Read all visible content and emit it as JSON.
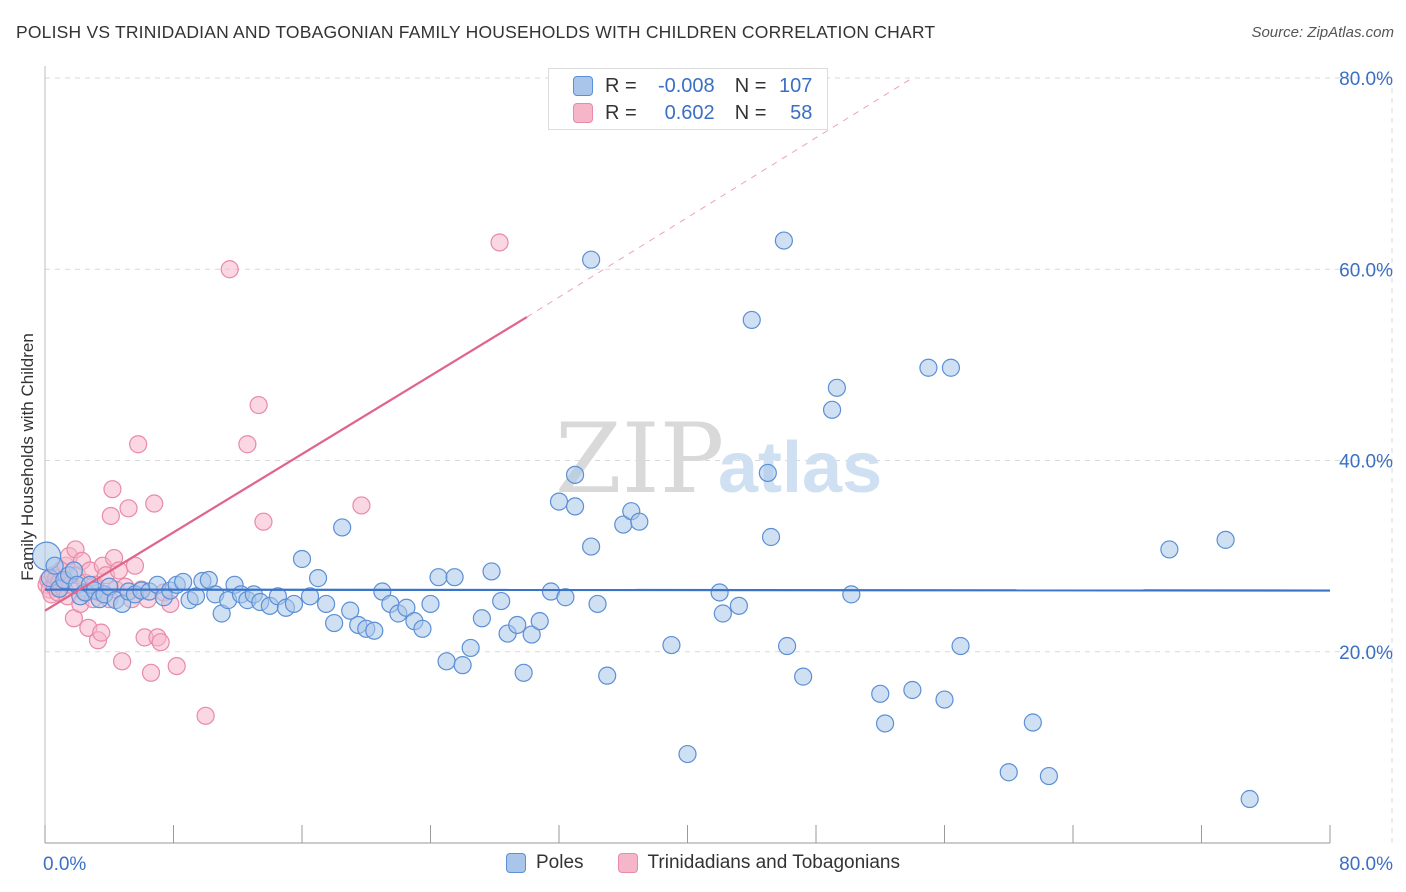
{
  "title": "POLISH VS TRINIDADIAN AND TOBAGONIAN FAMILY HOUSEHOLDS WITH CHILDREN CORRELATION CHART",
  "source": "Source: ZipAtlas.com",
  "watermark": {
    "zip": "ZIP",
    "atlas": "atlas"
  },
  "legend_box": {
    "rows": [
      {
        "r_label": "R =",
        "r_value": "-0.008",
        "n_label": "N =",
        "n_value": "107",
        "color": "#5b8fd6"
      },
      {
        "r_label": "R =",
        "r_value": "0.602",
        "n_label": "N =",
        "n_value": "58",
        "color": "#e88aa8"
      }
    ]
  },
  "legend_bottom": [
    {
      "label": "Poles",
      "color": "#5b8fd6"
    },
    {
      "label": "Trinidadians and Tobagonians",
      "color": "#e88aa8"
    }
  ],
  "colors": {
    "poles_fill": "#a9c6ea",
    "poles_stroke": "#5b8fd6",
    "poles_line": "#3a74c9",
    "tt_fill": "#f5b6ca",
    "tt_stroke": "#e88aa8",
    "tt_line": "#e0648c",
    "tick_label": "#3a6fc4",
    "grid": "#d9d9d9"
  },
  "chart_data": {
    "type": "scatter",
    "title": "POLISH VS TRINIDADIAN AND TOBAGONIAN FAMILY HOUSEHOLDS WITH CHILDREN CORRELATION CHART",
    "xlabel": "",
    "ylabel": "Family Households with Children",
    "xlim": [
      0,
      0.8
    ],
    "ylim": [
      0,
      0.8
    ],
    "x_tick_labels": [
      "0.0%",
      "80.0%"
    ],
    "y_tick_labels": [
      {
        "value": 0.2,
        "label": "20.0%"
      },
      {
        "value": 0.4,
        "label": "40.0%"
      },
      {
        "value": 0.6,
        "label": "60.0%"
      },
      {
        "value": 0.8,
        "label": "80.0%"
      }
    ],
    "grid": true,
    "legend_placement": "top-center",
    "series": [
      {
        "name": "Poles",
        "r": -0.008,
        "n": 107,
        "trend": {
          "x": [
            0.0,
            0.8
          ],
          "y": [
            0.265,
            0.264
          ],
          "style": "solid"
        },
        "points": [
          [
            0.001,
            0.3
          ],
          [
            0.003,
            0.277
          ],
          [
            0.006,
            0.29
          ],
          [
            0.009,
            0.266
          ],
          [
            0.012,
            0.275
          ],
          [
            0.015,
            0.28
          ],
          [
            0.018,
            0.285
          ],
          [
            0.02,
            0.27
          ],
          [
            0.022,
            0.258
          ],
          [
            0.025,
            0.262
          ],
          [
            0.028,
            0.27
          ],
          [
            0.031,
            0.264
          ],
          [
            0.034,
            0.255
          ],
          [
            0.037,
            0.26
          ],
          [
            0.04,
            0.268
          ],
          [
            0.044,
            0.254
          ],
          [
            0.048,
            0.25
          ],
          [
            0.052,
            0.263
          ],
          [
            0.056,
            0.26
          ],
          [
            0.06,
            0.264
          ],
          [
            0.065,
            0.263
          ],
          [
            0.07,
            0.27
          ],
          [
            0.074,
            0.257
          ],
          [
            0.078,
            0.264
          ],
          [
            0.082,
            0.27
          ],
          [
            0.086,
            0.273
          ],
          [
            0.09,
            0.254
          ],
          [
            0.094,
            0.258
          ],
          [
            0.098,
            0.274
          ],
          [
            0.102,
            0.275
          ],
          [
            0.106,
            0.26
          ],
          [
            0.11,
            0.24
          ],
          [
            0.114,
            0.254
          ],
          [
            0.118,
            0.27
          ],
          [
            0.122,
            0.26
          ],
          [
            0.126,
            0.254
          ],
          [
            0.13,
            0.26
          ],
          [
            0.134,
            0.252
          ],
          [
            0.14,
            0.248
          ],
          [
            0.145,
            0.258
          ],
          [
            0.15,
            0.246
          ],
          [
            0.155,
            0.25
          ],
          [
            0.16,
            0.297
          ],
          [
            0.165,
            0.258
          ],
          [
            0.17,
            0.277
          ],
          [
            0.175,
            0.25
          ],
          [
            0.18,
            0.23
          ],
          [
            0.185,
            0.33
          ],
          [
            0.19,
            0.243
          ],
          [
            0.195,
            0.228
          ],
          [
            0.2,
            0.224
          ],
          [
            0.205,
            0.222
          ],
          [
            0.21,
            0.263
          ],
          [
            0.215,
            0.25
          ],
          [
            0.22,
            0.24
          ],
          [
            0.225,
            0.246
          ],
          [
            0.23,
            0.232
          ],
          [
            0.235,
            0.224
          ],
          [
            0.24,
            0.25
          ],
          [
            0.245,
            0.278
          ],
          [
            0.25,
            0.19
          ],
          [
            0.255,
            0.278
          ],
          [
            0.26,
            0.186
          ],
          [
            0.265,
            0.204
          ],
          [
            0.272,
            0.235
          ],
          [
            0.278,
            0.284
          ],
          [
            0.284,
            0.253
          ],
          [
            0.288,
            0.219
          ],
          [
            0.294,
            0.228
          ],
          [
            0.298,
            0.178
          ],
          [
            0.303,
            0.218
          ],
          [
            0.308,
            0.232
          ],
          [
            0.315,
            0.263
          ],
          [
            0.32,
            0.357
          ],
          [
            0.324,
            0.257
          ],
          [
            0.33,
            0.385
          ],
          [
            0.33,
            0.352
          ],
          [
            0.34,
            0.31
          ],
          [
            0.34,
            0.61
          ],
          [
            0.344,
            0.25
          ],
          [
            0.35,
            0.175
          ],
          [
            0.36,
            0.333
          ],
          [
            0.365,
            0.347
          ],
          [
            0.37,
            0.336
          ],
          [
            0.39,
            0.207
          ],
          [
            0.4,
            0.093
          ],
          [
            0.42,
            0.262
          ],
          [
            0.422,
            0.24
          ],
          [
            0.432,
            0.248
          ],
          [
            0.44,
            0.547
          ],
          [
            0.45,
            0.387
          ],
          [
            0.452,
            0.32
          ],
          [
            0.46,
            0.63
          ],
          [
            0.462,
            0.206
          ],
          [
            0.472,
            0.174
          ],
          [
            0.49,
            0.453
          ],
          [
            0.493,
            0.476
          ],
          [
            0.502,
            0.26
          ],
          [
            0.52,
            0.156
          ],
          [
            0.523,
            0.125
          ],
          [
            0.54,
            0.16
          ],
          [
            0.55,
            0.497
          ],
          [
            0.56,
            0.15
          ],
          [
            0.564,
            0.497
          ],
          [
            0.57,
            0.206
          ],
          [
            0.6,
            0.074
          ],
          [
            0.615,
            0.126
          ],
          [
            0.625,
            0.07
          ],
          [
            0.7,
            0.307
          ],
          [
            0.735,
            0.317
          ],
          [
            0.75,
            0.046
          ]
        ]
      },
      {
        "name": "Trinidadians and Tobagonians",
        "r": 0.602,
        "n": 58,
        "trend": {
          "x": [
            0.0,
            0.3
          ],
          "y": [
            0.243,
            0.55
          ],
          "style": "solid",
          "extension": {
            "x": [
              0.3,
              0.54
            ],
            "y": [
              0.55,
              0.8
            ],
            "style": "dashed"
          }
        },
        "points": [
          [
            0.001,
            0.27
          ],
          [
            0.002,
            0.275
          ],
          [
            0.003,
            0.265
          ],
          [
            0.004,
            0.26
          ],
          [
            0.005,
            0.28
          ],
          [
            0.006,
            0.268
          ],
          [
            0.007,
            0.277
          ],
          [
            0.008,
            0.262
          ],
          [
            0.009,
            0.273
          ],
          [
            0.01,
            0.285
          ],
          [
            0.012,
            0.265
          ],
          [
            0.013,
            0.29
          ],
          [
            0.014,
            0.258
          ],
          [
            0.015,
            0.3
          ],
          [
            0.016,
            0.27
          ],
          [
            0.018,
            0.235
          ],
          [
            0.019,
            0.307
          ],
          [
            0.02,
            0.28
          ],
          [
            0.022,
            0.25
          ],
          [
            0.023,
            0.295
          ],
          [
            0.025,
            0.272
          ],
          [
            0.026,
            0.262
          ],
          [
            0.027,
            0.225
          ],
          [
            0.028,
            0.285
          ],
          [
            0.03,
            0.255
          ],
          [
            0.031,
            0.27
          ],
          [
            0.033,
            0.212
          ],
          [
            0.034,
            0.262
          ],
          [
            0.035,
            0.22
          ],
          [
            0.036,
            0.29
          ],
          [
            0.038,
            0.28
          ],
          [
            0.04,
            0.255
          ],
          [
            0.041,
            0.342
          ],
          [
            0.042,
            0.37
          ],
          [
            0.043,
            0.298
          ],
          [
            0.044,
            0.265
          ],
          [
            0.046,
            0.285
          ],
          [
            0.048,
            0.19
          ],
          [
            0.05,
            0.268
          ],
          [
            0.052,
            0.35
          ],
          [
            0.054,
            0.255
          ],
          [
            0.056,
            0.29
          ],
          [
            0.058,
            0.417
          ],
          [
            0.06,
            0.265
          ],
          [
            0.062,
            0.215
          ],
          [
            0.064,
            0.255
          ],
          [
            0.066,
            0.178
          ],
          [
            0.068,
            0.355
          ],
          [
            0.07,
            0.215
          ],
          [
            0.072,
            0.21
          ],
          [
            0.074,
            0.262
          ],
          [
            0.078,
            0.25
          ],
          [
            0.082,
            0.185
          ],
          [
            0.1,
            0.133
          ],
          [
            0.115,
            0.6
          ],
          [
            0.126,
            0.417
          ],
          [
            0.133,
            0.458
          ],
          [
            0.136,
            0.336
          ],
          [
            0.197,
            0.353
          ],
          [
            0.283,
            0.628
          ]
        ]
      }
    ]
  }
}
